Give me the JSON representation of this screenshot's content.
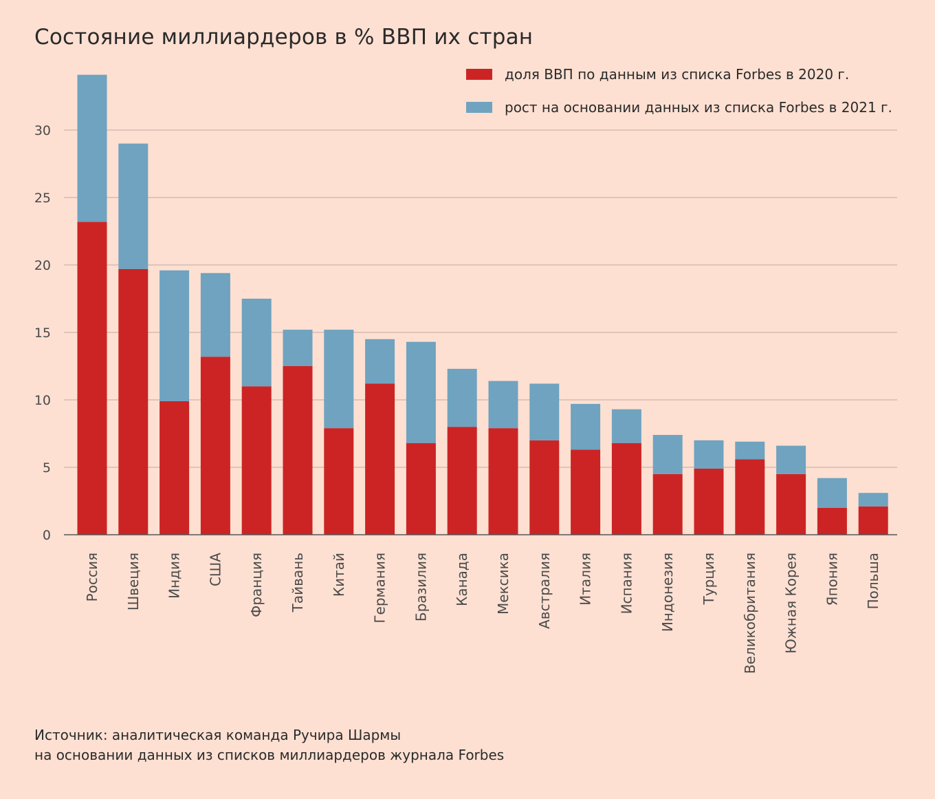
{
  "chart_data": {
    "type": "bar",
    "stacked": true,
    "title": "Состояние миллиардеров в % ВВП их стран",
    "xlabel": "",
    "ylabel": "",
    "ylim": [
      0,
      35
    ],
    "yticks": [
      0,
      5,
      10,
      15,
      20,
      25,
      30
    ],
    "grid": true,
    "legend_position": "top-right",
    "categories": [
      "Россия",
      "Швеция",
      "Индия",
      "США",
      "Франция",
      "Тайвань",
      "Китай",
      "Германия",
      "Бразилия",
      "Канада",
      "Мексика",
      "Австралия",
      "Италия",
      "Испания",
      "Индонезия",
      "Турция",
      "Великобритания",
      "Южная Корея",
      "Япония",
      "Польша"
    ],
    "series": [
      {
        "name": "доля ВВП по данным из списка Forbes в 2020 г.",
        "color": "#cc2424",
        "values": [
          23.2,
          19.7,
          9.9,
          13.2,
          11.0,
          12.5,
          7.9,
          11.2,
          6.8,
          8.0,
          7.9,
          7.0,
          6.3,
          6.8,
          4.5,
          4.9,
          5.6,
          4.5,
          2.0,
          2.1
        ]
      },
      {
        "name": "рост на основании данных из списка Forbes в 2021 г.",
        "color": "#6fa3c0",
        "values": [
          10.9,
          9.3,
          9.7,
          6.2,
          6.5,
          2.7,
          7.3,
          3.3,
          7.5,
          4.3,
          3.5,
          4.2,
          3.4,
          2.5,
          2.9,
          2.1,
          1.3,
          2.1,
          2.2,
          1.0
        ]
      }
    ],
    "tick_color": "#4a4a4a",
    "grid_color": "#c0a8a0",
    "axis_color": "#555555"
  },
  "source": {
    "line1": "Источник: аналитическая команда Ручира Шармы",
    "line2": "на основании данных из списков миллиардеров журнала Forbes"
  }
}
